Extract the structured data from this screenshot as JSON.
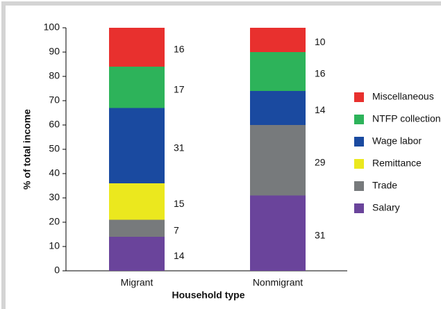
{
  "chart_data": {
    "type": "stacked_bar",
    "y_label": "% of total income",
    "x_label": "Household type",
    "categories": [
      "Migrant",
      "Nonmigrant"
    ],
    "series": [
      {
        "name": "Salary",
        "color": "#6a449b",
        "values": [
          14,
          31
        ]
      },
      {
        "name": "Trade",
        "color": "#777a7c",
        "values": [
          7,
          29
        ]
      },
      {
        "name": "Remittance",
        "color": "#ebe81e",
        "values": [
          15,
          null
        ]
      },
      {
        "name": "Wage labor",
        "color": "#1a4aa0",
        "values": [
          31,
          14
        ]
      },
      {
        "name": "NTFP collection",
        "color": "#2db35a",
        "values": [
          17,
          16
        ]
      },
      {
        "name": "Miscellaneous",
        "color": "#e8302e",
        "values": [
          16,
          10
        ]
      }
    ],
    "ylim": [
      0,
      100
    ],
    "yticks": [
      0,
      10,
      20,
      30,
      40,
      50,
      60,
      70,
      80,
      90,
      100
    ],
    "legend": "right"
  }
}
